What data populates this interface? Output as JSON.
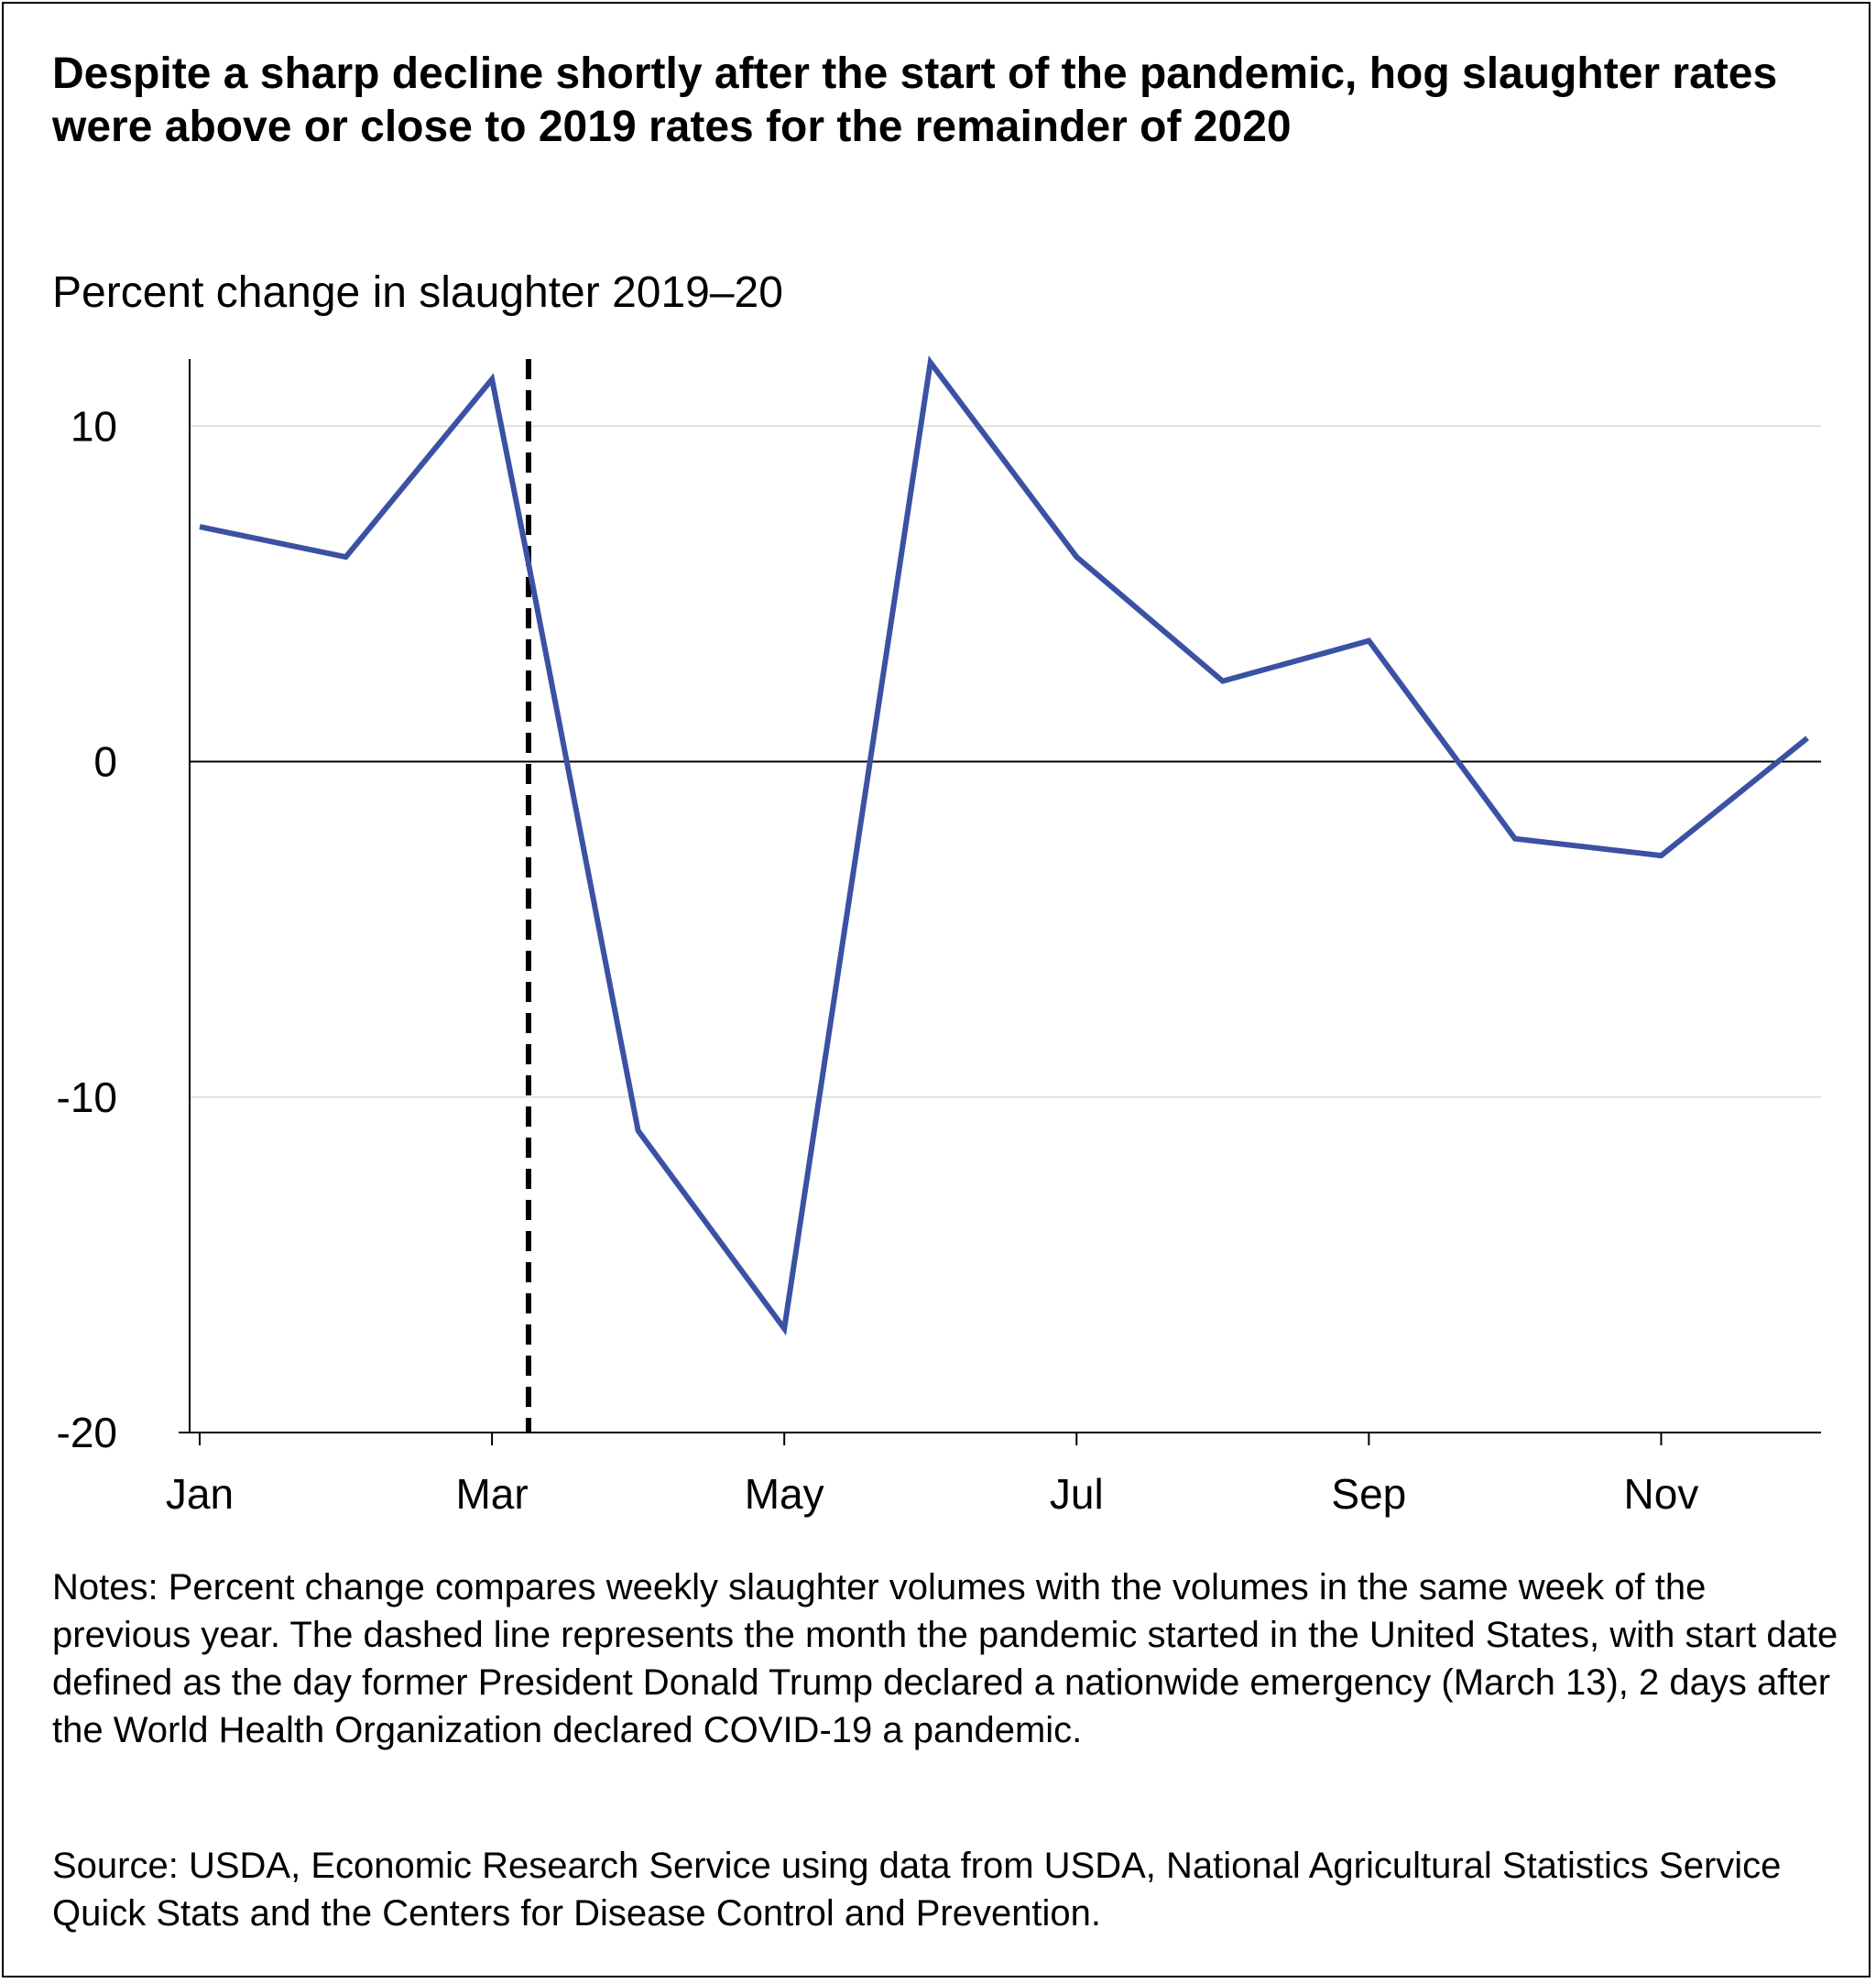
{
  "title": "Despite a sharp decline shortly after the start of the pandemic, hog slaughter rates were above or close to 2019 rates for the remainder of 2020",
  "subtitle": "Percent change in slaughter 2019–20",
  "notes": "Notes: Percent change compares weekly slaughter volumes with the volumes in the same week of the previous year. The dashed line represents the month the pandemic started in the United States, with start date defined as the day former President Donald Trump declared a nationwide emergency (March 13), 2 days after the World Health Organization declared COVID-19 a pandemic.",
  "source": "Source: USDA, Economic Research Service using data from USDA, National Agricultural Statistics Service Quick Stats and the Centers for Disease Control and Prevention.",
  "colors": {
    "line": "#3b51a3",
    "axis": "#000000",
    "grid": "#d9d9d9"
  },
  "chart_data": {
    "type": "line",
    "xlabel": "",
    "ylabel": "",
    "x": [
      "Jan",
      "Feb",
      "Mar",
      "Mar",
      "Apr",
      "May",
      "Jun",
      "Jul",
      "Aug",
      "Sep",
      "Oct",
      "Nov",
      "Dec"
    ],
    "x_month_index": [
      1,
      2,
      3,
      3.25,
      4,
      5,
      6,
      7,
      8,
      9,
      10,
      11,
      12
    ],
    "series": [
      {
        "values": [
          7.0,
          6.1,
          11.4,
          5.9,
          -11.0,
          -16.9,
          11.9,
          6.1,
          2.4,
          3.6,
          -2.3,
          -2.8,
          0.7
        ]
      }
    ],
    "xticks": [
      1,
      3,
      5,
      7,
      9,
      11
    ],
    "xtick_labels": [
      "Jan",
      "Mar",
      "May",
      "Jul",
      "Sep",
      "Nov"
    ],
    "yticks": [
      10,
      0,
      -10,
      -20
    ],
    "ytick_labels": [
      "10",
      "0",
      "-10",
      "-20"
    ],
    "ylim": [
      -20,
      12
    ],
    "xlim": [
      1,
      12
    ],
    "grid": true,
    "reference_line": {
      "month": 3.25,
      "style": "dashed"
    }
  }
}
